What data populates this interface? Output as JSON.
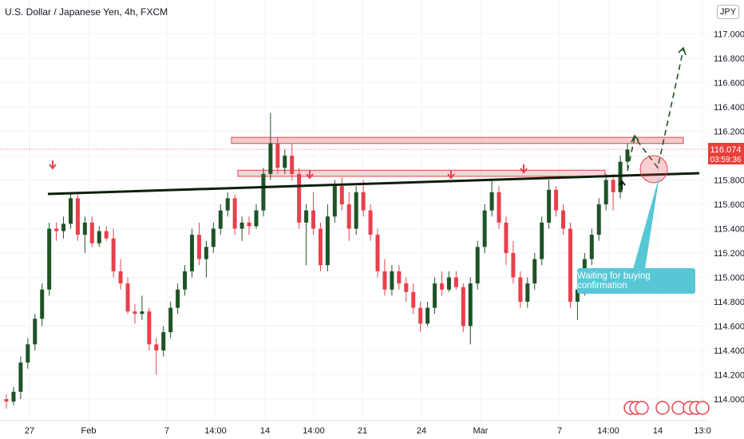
{
  "header": {
    "title": "U.S. Dollar / Japanese Yen, 4h, FXCM",
    "currency": "JPY"
  },
  "callout": {
    "text": "Waiting for buying confirmation"
  },
  "current_price": {
    "value": "116.074",
    "countdown": "03:59:36"
  },
  "colors": {
    "up": "#1e5326",
    "down": "#e8404c",
    "zone": "#e8404c",
    "trend": "#0b1f0c",
    "callout": "#57c7d6",
    "arrow_down": "#e8404c",
    "arrow_up": "#0b1f0c"
  },
  "chart_data": {
    "type": "candlestick",
    "symbol": "U.S. Dollar / Japanese Yen",
    "timeframe": "4h",
    "ylim": [
      113.9,
      117.2
    ],
    "y_ticks": [
      "117.000",
      "116.800",
      "116.600",
      "116.400",
      "116.200",
      "116.000",
      "115.800",
      "115.600",
      "115.400",
      "115.200",
      "115.000",
      "114.800",
      "114.600",
      "114.400",
      "114.200",
      "114.000"
    ],
    "x_ticks": [
      "27",
      "Feb",
      "7",
      "14:00",
      "14",
      "14:00",
      "21",
      "24",
      "Mar",
      "7",
      "14:00",
      "14",
      "13:0"
    ],
    "resistance_zone_upper": [
      116.1,
      116.15
    ],
    "resistance_zone_lower": [
      115.83,
      115.88
    ],
    "trendline": {
      "from": 115.68,
      "to": 115.86
    },
    "projection_target": 116.95,
    "ohlc": [
      [
        114.0,
        114.04,
        113.92,
        113.98
      ],
      [
        113.98,
        114.1,
        113.95,
        114.06
      ],
      [
        114.06,
        114.35,
        114.0,
        114.3
      ],
      [
        114.3,
        114.5,
        114.25,
        114.45
      ],
      [
        114.45,
        114.7,
        114.4,
        114.66
      ],
      [
        114.66,
        114.95,
        114.6,
        114.9
      ],
      [
        114.9,
        115.45,
        114.85,
        115.4
      ],
      [
        115.4,
        115.45,
        115.3,
        115.38
      ],
      [
        115.38,
        115.5,
        115.32,
        115.44
      ],
      [
        115.44,
        115.7,
        115.4,
        115.65
      ],
      [
        115.65,
        115.68,
        115.3,
        115.35
      ],
      [
        115.35,
        115.5,
        115.2,
        115.45
      ],
      [
        115.45,
        115.5,
        115.25,
        115.28
      ],
      [
        115.28,
        115.42,
        115.25,
        115.38
      ],
      [
        115.38,
        115.42,
        115.3,
        115.32
      ],
      [
        115.32,
        115.4,
        115.0,
        115.05
      ],
      [
        115.05,
        115.15,
        114.9,
        114.95
      ],
      [
        114.95,
        115.0,
        114.7,
        114.72
      ],
      [
        114.72,
        114.78,
        114.62,
        114.7
      ],
      [
        114.7,
        114.85,
        114.65,
        114.72
      ],
      [
        114.72,
        114.75,
        114.4,
        114.45
      ],
      [
        114.45,
        114.5,
        114.2,
        114.4
      ],
      [
        114.4,
        114.6,
        114.35,
        114.55
      ],
      [
        114.55,
        114.8,
        114.5,
        114.75
      ],
      [
        114.75,
        114.95,
        114.7,
        114.9
      ],
      [
        114.9,
        115.1,
        114.85,
        115.05
      ],
      [
        115.05,
        115.4,
        115.0,
        115.35
      ],
      [
        115.35,
        115.45,
        115.1,
        115.15
      ],
      [
        115.15,
        115.3,
        115.0,
        115.25
      ],
      [
        115.25,
        115.45,
        115.2,
        115.4
      ],
      [
        115.4,
        115.6,
        115.35,
        115.55
      ],
      [
        115.55,
        115.7,
        115.5,
        115.65
      ],
      [
        115.65,
        115.68,
        115.35,
        115.4
      ],
      [
        115.4,
        115.5,
        115.3,
        115.45
      ],
      [
        115.45,
        115.5,
        115.35,
        115.42
      ],
      [
        115.42,
        115.6,
        115.4,
        115.55
      ],
      [
        115.55,
        115.9,
        115.5,
        115.85
      ],
      [
        115.85,
        116.35,
        115.8,
        116.1
      ],
      [
        116.1,
        116.15,
        115.85,
        115.9
      ],
      [
        115.9,
        116.05,
        115.85,
        116.0
      ],
      [
        116.0,
        116.1,
        115.8,
        115.85
      ],
      [
        115.85,
        115.9,
        115.4,
        115.45
      ],
      [
        115.45,
        115.6,
        115.1,
        115.55
      ],
      [
        115.55,
        115.7,
        115.35,
        115.4
      ],
      [
        115.4,
        115.45,
        115.05,
        115.1
      ],
      [
        115.1,
        115.6,
        115.05,
        115.5
      ],
      [
        115.5,
        115.8,
        115.45,
        115.75
      ],
      [
        115.75,
        115.82,
        115.55,
        115.6
      ],
      [
        115.6,
        115.7,
        115.3,
        115.4
      ],
      [
        115.4,
        115.75,
        115.35,
        115.7
      ],
      [
        115.7,
        115.8,
        115.5,
        115.55
      ],
      [
        115.55,
        115.6,
        115.3,
        115.35
      ],
      [
        115.35,
        115.4,
        115.0,
        115.05
      ],
      [
        115.05,
        115.15,
        114.85,
        114.9
      ],
      [
        114.9,
        115.1,
        114.85,
        115.05
      ],
      [
        115.05,
        115.1,
        114.9,
        114.95
      ],
      [
        114.95,
        115.0,
        114.8,
        114.88
      ],
      [
        114.88,
        114.95,
        114.7,
        114.75
      ],
      [
        114.75,
        114.8,
        114.55,
        114.62
      ],
      [
        114.62,
        114.8,
        114.6,
        114.75
      ],
      [
        114.75,
        115.0,
        114.7,
        114.95
      ],
      [
        114.95,
        115.05,
        114.85,
        114.9
      ],
      [
        114.9,
        115.05,
        114.88,
        115.0
      ],
      [
        115.0,
        115.05,
        114.9,
        114.92
      ],
      [
        114.92,
        114.95,
        114.55,
        114.6
      ],
      [
        114.6,
        115.0,
        114.45,
        114.95
      ],
      [
        114.95,
        115.3,
        114.9,
        115.25
      ],
      [
        115.25,
        115.6,
        115.2,
        115.55
      ],
      [
        115.55,
        115.8,
        115.5,
        115.7
      ],
      [
        115.7,
        115.75,
        115.4,
        115.45
      ],
      [
        115.45,
        115.5,
        115.1,
        115.2
      ],
      [
        115.2,
        115.3,
        114.95,
        115.0
      ],
      [
        115.0,
        115.05,
        114.75,
        114.8
      ],
      [
        114.8,
        115.0,
        114.75,
        114.95
      ],
      [
        114.95,
        115.2,
        114.9,
        115.15
      ],
      [
        115.15,
        115.5,
        115.1,
        115.45
      ],
      [
        115.45,
        115.8,
        115.4,
        115.72
      ],
      [
        115.72,
        115.75,
        115.5,
        115.55
      ],
      [
        115.55,
        115.6,
        115.35,
        115.4
      ],
      [
        115.4,
        115.45,
        114.75,
        114.8
      ],
      [
        114.8,
        114.95,
        114.65,
        114.9
      ],
      [
        114.9,
        115.2,
        114.85,
        115.15
      ],
      [
        115.15,
        115.4,
        115.1,
        115.35
      ],
      [
        115.35,
        115.65,
        115.3,
        115.6
      ],
      [
        115.6,
        115.85,
        115.55,
        115.8
      ],
      [
        115.8,
        115.85,
        115.55,
        115.7
      ],
      [
        115.7,
        116.0,
        115.65,
        115.95
      ],
      [
        115.95,
        116.1,
        115.9,
        116.05
      ]
    ]
  }
}
